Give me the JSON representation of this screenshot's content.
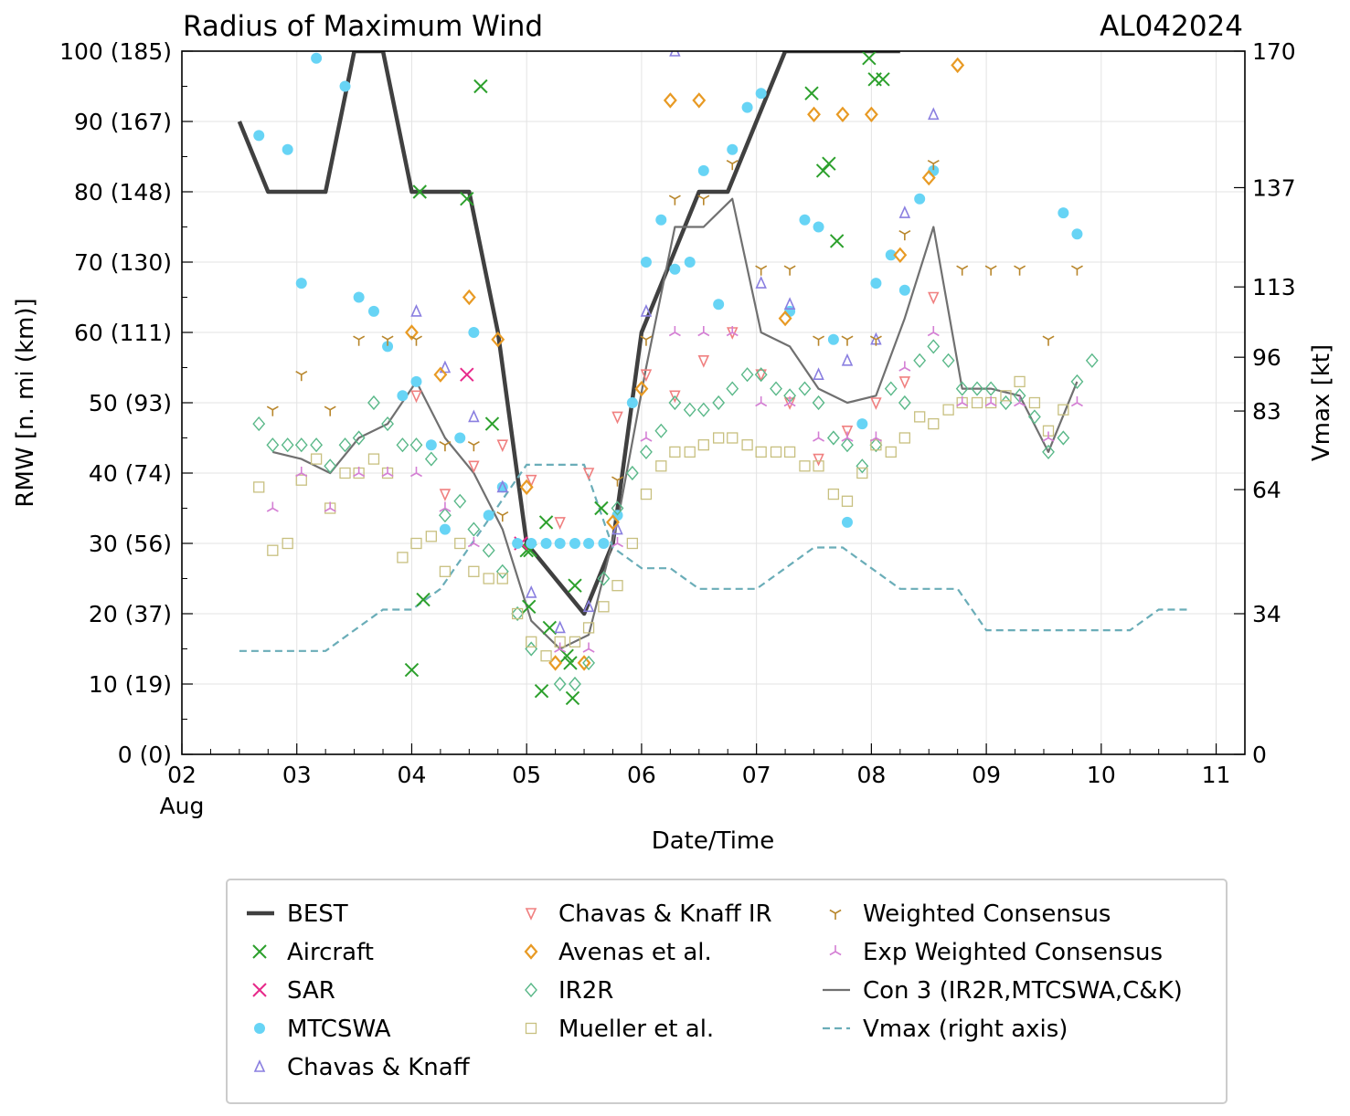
{
  "chart_data": {
    "type": "line",
    "title": "Radius of Maximum Wind",
    "storm_id": "AL042024",
    "xlabel": "Date/Time",
    "ylabel": "RMW [n. mi (km)]",
    "y2label": "Vmax [kt]",
    "xlim": [
      2.0,
      11.25
    ],
    "ylim": [
      0,
      100
    ],
    "x_ticks": [
      {
        "x": 2,
        "label": "02",
        "sublabel": "Aug"
      },
      {
        "x": 3,
        "label": "03"
      },
      {
        "x": 4,
        "label": "04"
      },
      {
        "x": 5,
        "label": "05"
      },
      {
        "x": 6,
        "label": "06"
      },
      {
        "x": 7,
        "label": "07"
      },
      {
        "x": 8,
        "label": "08"
      },
      {
        "x": 9,
        "label": "09"
      },
      {
        "x": 10,
        "label": "10"
      },
      {
        "x": 11,
        "label": "11"
      }
    ],
    "y_ticks": [
      {
        "y": 0,
        "label": "0 (0)"
      },
      {
        "y": 10,
        "label": "10 (19)"
      },
      {
        "y": 20,
        "label": "20 (37)"
      },
      {
        "y": 30,
        "label": "30 (56)"
      },
      {
        "y": 40,
        "label": "40 (74)"
      },
      {
        "y": 50,
        "label": "50 (93)"
      },
      {
        "y": 60,
        "label": "60 (111)"
      },
      {
        "y": 70,
        "label": "70 (130)"
      },
      {
        "y": 80,
        "label": "80 (148)"
      },
      {
        "y": 90,
        "label": "90 (167)"
      },
      {
        "y": 100,
        "label": "100 (185)"
      }
    ],
    "y2_ticks": [
      {
        "vmax": 0,
        "label": "0"
      },
      {
        "vmax": 34,
        "label": "34"
      },
      {
        "vmax": 64,
        "label": "64"
      },
      {
        "vmax": 83,
        "label": "83"
      },
      {
        "vmax": 96,
        "label": "96"
      },
      {
        "vmax": 113,
        "label": "113"
      },
      {
        "vmax": 137,
        "label": "137"
      },
      {
        "vmax": 170,
        "label": "170"
      }
    ],
    "y2_max": 170,
    "series": [
      {
        "name": "BEST",
        "kind": "line",
        "color": "#404040",
        "x": [
          2.5,
          2.75,
          3.0,
          3.25,
          3.5,
          3.75,
          4.0,
          4.25,
          4.5,
          4.75,
          5.0,
          5.25,
          5.5,
          5.75,
          6.0,
          6.25,
          6.5,
          6.75,
          7.0,
          7.25,
          7.5,
          7.75,
          8.0,
          8.25
        ],
        "y": [
          90,
          80,
          80,
          80,
          100,
          100,
          80,
          80,
          80,
          60,
          30,
          25,
          20,
          30,
          60,
          70,
          80,
          80,
          90,
          100,
          100,
          100,
          100,
          100
        ]
      },
      {
        "name": "Aircraft",
        "kind": "marker",
        "marker": "x",
        "color": "#2ca02c",
        "x": [
          4.0,
          4.07,
          4.1,
          4.48,
          4.6,
          4.7,
          5.0,
          5.02,
          5.03,
          5.13,
          5.17,
          5.2,
          5.35,
          5.38,
          5.4,
          5.42,
          5.65,
          7.48,
          7.58,
          7.63,
          7.7,
          7.98,
          8.03,
          8.1
        ],
        "y": [
          12,
          80,
          22,
          79,
          95,
          47,
          29,
          21,
          29,
          9,
          33,
          18,
          14,
          13,
          8,
          24,
          35,
          94,
          83,
          84,
          73,
          99,
          96,
          96
        ]
      },
      {
        "name": "SAR",
        "kind": "marker",
        "marker": "x",
        "color": "#e7298a",
        "x": [
          4.48,
          4.95
        ],
        "y": [
          54,
          30
        ]
      },
      {
        "name": "MTCSWA",
        "kind": "marker",
        "marker": "circle",
        "color": "#67d4f5",
        "x": [
          2.67,
          2.92,
          3.04,
          3.17,
          3.42,
          3.54,
          3.67,
          3.79,
          3.92,
          4.04,
          4.17,
          4.29,
          4.42,
          4.54,
          4.67,
          4.79,
          4.92,
          5.04,
          5.17,
          5.29,
          5.42,
          5.54,
          5.67,
          5.79,
          5.92,
          6.04,
          6.17,
          6.29,
          6.42,
          6.54,
          6.67,
          6.79,
          6.92,
          7.04,
          7.29,
          7.42,
          7.54,
          7.67,
          7.79,
          7.92,
          8.04,
          8.17,
          8.29,
          8.42,
          8.54,
          9.67,
          9.79
        ],
        "y": [
          88,
          86,
          67,
          99,
          95,
          65,
          63,
          58,
          51,
          53,
          44,
          32,
          45,
          60,
          34,
          38,
          30,
          30,
          30,
          30,
          30,
          30,
          30,
          34,
          50,
          70,
          76,
          69,
          70,
          83,
          64,
          86,
          92,
          94,
          63,
          76,
          75,
          59,
          33,
          47,
          67,
          71,
          66,
          79,
          83,
          77,
          74
        ]
      },
      {
        "name": "Chavas & Knaff",
        "kind": "marker",
        "marker": "triangle-up",
        "color": "#8a7fe0",
        "x": [
          4.04,
          4.29,
          4.54,
          4.79,
          5.04,
          5.29,
          5.54,
          5.79,
          6.04,
          6.29,
          7.04,
          7.29,
          7.54,
          7.79,
          8.04,
          8.29,
          8.54
        ],
        "y": [
          63,
          55,
          48,
          38,
          23,
          18,
          21,
          32,
          63,
          100,
          67,
          64,
          54,
          56,
          59,
          77,
          91
        ]
      },
      {
        "name": "Chavas & Knaff IR",
        "kind": "marker",
        "marker": "triangle-down",
        "color": "#f08080",
        "x": [
          4.04,
          4.29,
          4.54,
          4.79,
          5.04,
          5.29,
          5.54,
          5.79,
          6.04,
          6.29,
          6.54,
          6.79,
          7.04,
          7.29,
          7.54,
          7.79,
          8.04,
          8.29,
          8.54
        ],
        "y": [
          51,
          37,
          41,
          44,
          39,
          33,
          40,
          48,
          54,
          51,
          56,
          60,
          54,
          50,
          42,
          46,
          50,
          53,
          65
        ]
      },
      {
        "name": "Avenas et al.",
        "kind": "marker",
        "marker": "diamond",
        "color": "#e89a24",
        "x": [
          4.0,
          4.25,
          4.5,
          4.75,
          5.0,
          5.25,
          5.5,
          5.75,
          6.0,
          6.25,
          6.5,
          7.25,
          7.5,
          7.75,
          8.0,
          8.25,
          8.5,
          8.75
        ],
        "y": [
          60,
          54,
          65,
          59,
          38,
          13,
          13,
          33,
          52,
          93,
          93,
          62,
          91,
          91,
          91,
          71,
          82,
          98
        ]
      },
      {
        "name": "IR2R",
        "kind": "marker",
        "marker": "diamond-open",
        "color": "#5ab889",
        "x": [
          2.67,
          2.79,
          2.92,
          3.04,
          3.17,
          3.29,
          3.42,
          3.54,
          3.67,
          3.79,
          3.92,
          4.04,
          4.17,
          4.29,
          4.42,
          4.54,
          4.67,
          4.79,
          4.92,
          5.04,
          5.29,
          5.42,
          5.54,
          5.67,
          5.79,
          5.92,
          6.04,
          6.17,
          6.29,
          6.42,
          6.54,
          6.67,
          6.79,
          6.92,
          7.04,
          7.17,
          7.29,
          7.42,
          7.54,
          7.67,
          7.79,
          7.92,
          8.04,
          8.17,
          8.29,
          8.42,
          8.54,
          8.67,
          8.79,
          8.92,
          9.04,
          9.17,
          9.29,
          9.42,
          9.54,
          9.67,
          9.79,
          9.92
        ],
        "y": [
          47,
          44,
          44,
          44,
          44,
          41,
          44,
          45,
          50,
          47,
          44,
          44,
          42,
          34,
          36,
          32,
          29,
          26,
          20,
          15,
          10,
          10,
          13,
          25,
          35,
          40,
          43,
          46,
          50,
          49,
          49,
          50,
          52,
          54,
          54,
          52,
          51,
          52,
          50,
          45,
          44,
          41,
          44,
          52,
          50,
          56,
          58,
          56,
          52,
          52,
          52,
          50,
          51,
          48,
          43,
          45,
          53,
          56
        ]
      },
      {
        "name": "Mueller et al.",
        "kind": "marker",
        "marker": "square",
        "color": "#c8c080",
        "x": [
          2.67,
          2.79,
          2.92,
          3.04,
          3.17,
          3.29,
          3.42,
          3.54,
          3.67,
          3.79,
          3.92,
          4.04,
          4.17,
          4.29,
          4.42,
          4.54,
          4.67,
          4.79,
          4.92,
          5.04,
          5.17,
          5.29,
          5.42,
          5.54,
          5.67,
          5.79,
          5.92,
          6.04,
          6.17,
          6.29,
          6.42,
          6.54,
          6.67,
          6.79,
          6.92,
          7.04,
          7.17,
          7.29,
          7.42,
          7.54,
          7.67,
          7.79,
          7.92,
          8.04,
          8.17,
          8.29,
          8.42,
          8.54,
          8.67,
          8.79,
          8.92,
          9.04,
          9.17,
          9.29,
          9.42,
          9.54,
          9.67
        ],
        "y": [
          38,
          29,
          30,
          39,
          42,
          35,
          40,
          40,
          42,
          40,
          28,
          30,
          31,
          26,
          30,
          26,
          25,
          25,
          20,
          16,
          14,
          16,
          16,
          18,
          21,
          24,
          30,
          37,
          41,
          43,
          43,
          44,
          45,
          45,
          44,
          43,
          43,
          43,
          41,
          41,
          37,
          36,
          40,
          44,
          43,
          45,
          48,
          47,
          49,
          50,
          50,
          50,
          51,
          53,
          50,
          46,
          49
        ]
      },
      {
        "name": "Weighted Consensus",
        "kind": "marker",
        "marker": "tri-down",
        "color": "#b8862b",
        "x": [
          2.79,
          3.04,
          3.29,
          3.54,
          3.79,
          4.04,
          4.29,
          4.54,
          4.79,
          5.79,
          6.04,
          6.29,
          6.54,
          6.79,
          7.04,
          7.29,
          7.54,
          7.79,
          8.04,
          8.29,
          8.54,
          8.79,
          9.04,
          9.29,
          9.54,
          9.79
        ],
        "y": [
          49,
          54,
          49,
          59,
          59,
          59,
          44,
          44,
          34,
          39,
          59,
          79,
          79,
          84,
          69,
          69,
          59,
          59,
          59,
          74,
          84,
          69,
          69,
          69,
          59,
          69
        ]
      },
      {
        "name": "Exp Weighted Consensus",
        "kind": "marker",
        "marker": "tri-up",
        "color": "#d47fd4",
        "x": [
          2.79,
          3.04,
          3.29,
          3.54,
          3.79,
          4.04,
          4.29,
          4.54,
          5.29,
          5.54,
          5.79,
          6.04,
          6.29,
          6.54,
          6.79,
          7.04,
          7.29,
          7.54,
          7.79,
          8.04,
          8.29,
          8.54,
          8.79,
          9.04,
          9.29,
          9.54,
          9.79
        ],
        "y": [
          35,
          40,
          35,
          40,
          40,
          40,
          35,
          30,
          15,
          15,
          30,
          45,
          60,
          60,
          60,
          50,
          50,
          45,
          45,
          45,
          55,
          60,
          50,
          50,
          50,
          45,
          50
        ]
      },
      {
        "name": "Con 3 (IR2R,MTCSWA,C&K)",
        "kind": "line",
        "color": "#707070",
        "x": [
          2.79,
          3.04,
          3.29,
          3.54,
          3.79,
          4.04,
          4.29,
          4.54,
          4.79,
          5.04,
          5.29,
          5.54,
          5.79,
          6.04,
          6.29,
          6.54,
          6.79,
          7.04,
          7.29,
          7.54,
          7.79,
          8.04,
          8.29,
          8.54,
          8.79,
          9.04,
          9.29,
          9.54,
          9.79
        ],
        "y": [
          43,
          42,
          40,
          45,
          47,
          53,
          45,
          40,
          32,
          19,
          15,
          17,
          33,
          55,
          75,
          75,
          79,
          60,
          58,
          52,
          50,
          51,
          62,
          75,
          52,
          52,
          51,
          43,
          53
        ]
      },
      {
        "name": "Vmax (right axis)",
        "kind": "line",
        "dashed": true,
        "color": "#6aadb8",
        "x": [
          2.5,
          2.75,
          3.0,
          3.25,
          3.5,
          3.75,
          4.0,
          4.25,
          4.5,
          4.75,
          5.0,
          5.25,
          5.5,
          5.75,
          6.0,
          6.25,
          6.5,
          6.75,
          7.0,
          7.25,
          7.5,
          7.75,
          8.0,
          8.25,
          8.5,
          8.75,
          9.0,
          9.25,
          9.5,
          9.75,
          10.0,
          10.25,
          10.5,
          10.75
        ],
        "vmax": [
          25,
          25,
          25,
          25,
          30,
          35,
          35,
          40,
          50,
          60,
          70,
          70,
          70,
          50,
          45,
          45,
          40,
          40,
          40,
          45,
          50,
          50,
          45,
          40,
          40,
          40,
          30,
          30,
          30,
          30,
          30,
          30,
          35,
          35
        ]
      }
    ],
    "legend": {
      "position": "bottom",
      "entries": [
        "BEST",
        "Aircraft",
        "SAR",
        "MTCSWA",
        "Chavas & Knaff",
        "Chavas & Knaff IR",
        "Avenas et al.",
        "IR2R",
        "Mueller et al.",
        "Weighted Consensus",
        "Exp Weighted Consensus",
        "Con 3 (IR2R,MTCSWA,C&K)",
        "Vmax (right axis)"
      ]
    }
  }
}
